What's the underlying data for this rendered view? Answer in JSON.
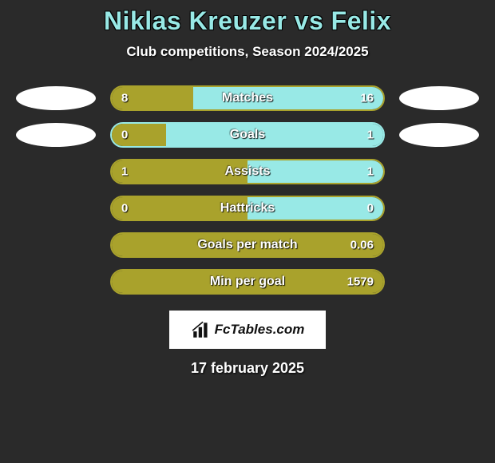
{
  "title": "Niklas Kreuzer vs Felix",
  "subtitle": "Club competitions, Season 2024/2025",
  "colors": {
    "left_player": "#a9a22c",
    "right_player": "#98e9e6",
    "background": "#2a2a2a",
    "logo_bg": "#ffffff",
    "text": "#ffffff"
  },
  "stats": [
    {
      "label": "Matches",
      "left_val": "8",
      "right_val": "16",
      "left_pct": 30,
      "right_pct": 70,
      "show_icons": true,
      "border": "#a9a22c"
    },
    {
      "label": "Goals",
      "left_val": "0",
      "right_val": "1",
      "left_pct": 20,
      "right_pct": 80,
      "show_icons": true,
      "border": "#98e9e6"
    },
    {
      "label": "Assists",
      "left_val": "1",
      "right_val": "1",
      "left_pct": 50,
      "right_pct": 50,
      "show_icons": false,
      "border": "#a9a22c"
    },
    {
      "label": "Hattricks",
      "left_val": "0",
      "right_val": "0",
      "left_pct": 50,
      "right_pct": 50,
      "show_icons": false,
      "border": "#a9a22c"
    },
    {
      "label": "Goals per match",
      "left_val": "",
      "right_val": "0.06",
      "left_pct": 100,
      "right_pct": 0,
      "show_icons": false,
      "border": "#a9a22c"
    },
    {
      "label": "Min per goal",
      "left_val": "",
      "right_val": "1579",
      "left_pct": 100,
      "right_pct": 0,
      "show_icons": false,
      "border": "#a9a22c"
    }
  ],
  "logo_text": "FcTables.com",
  "date": "17 february 2025"
}
